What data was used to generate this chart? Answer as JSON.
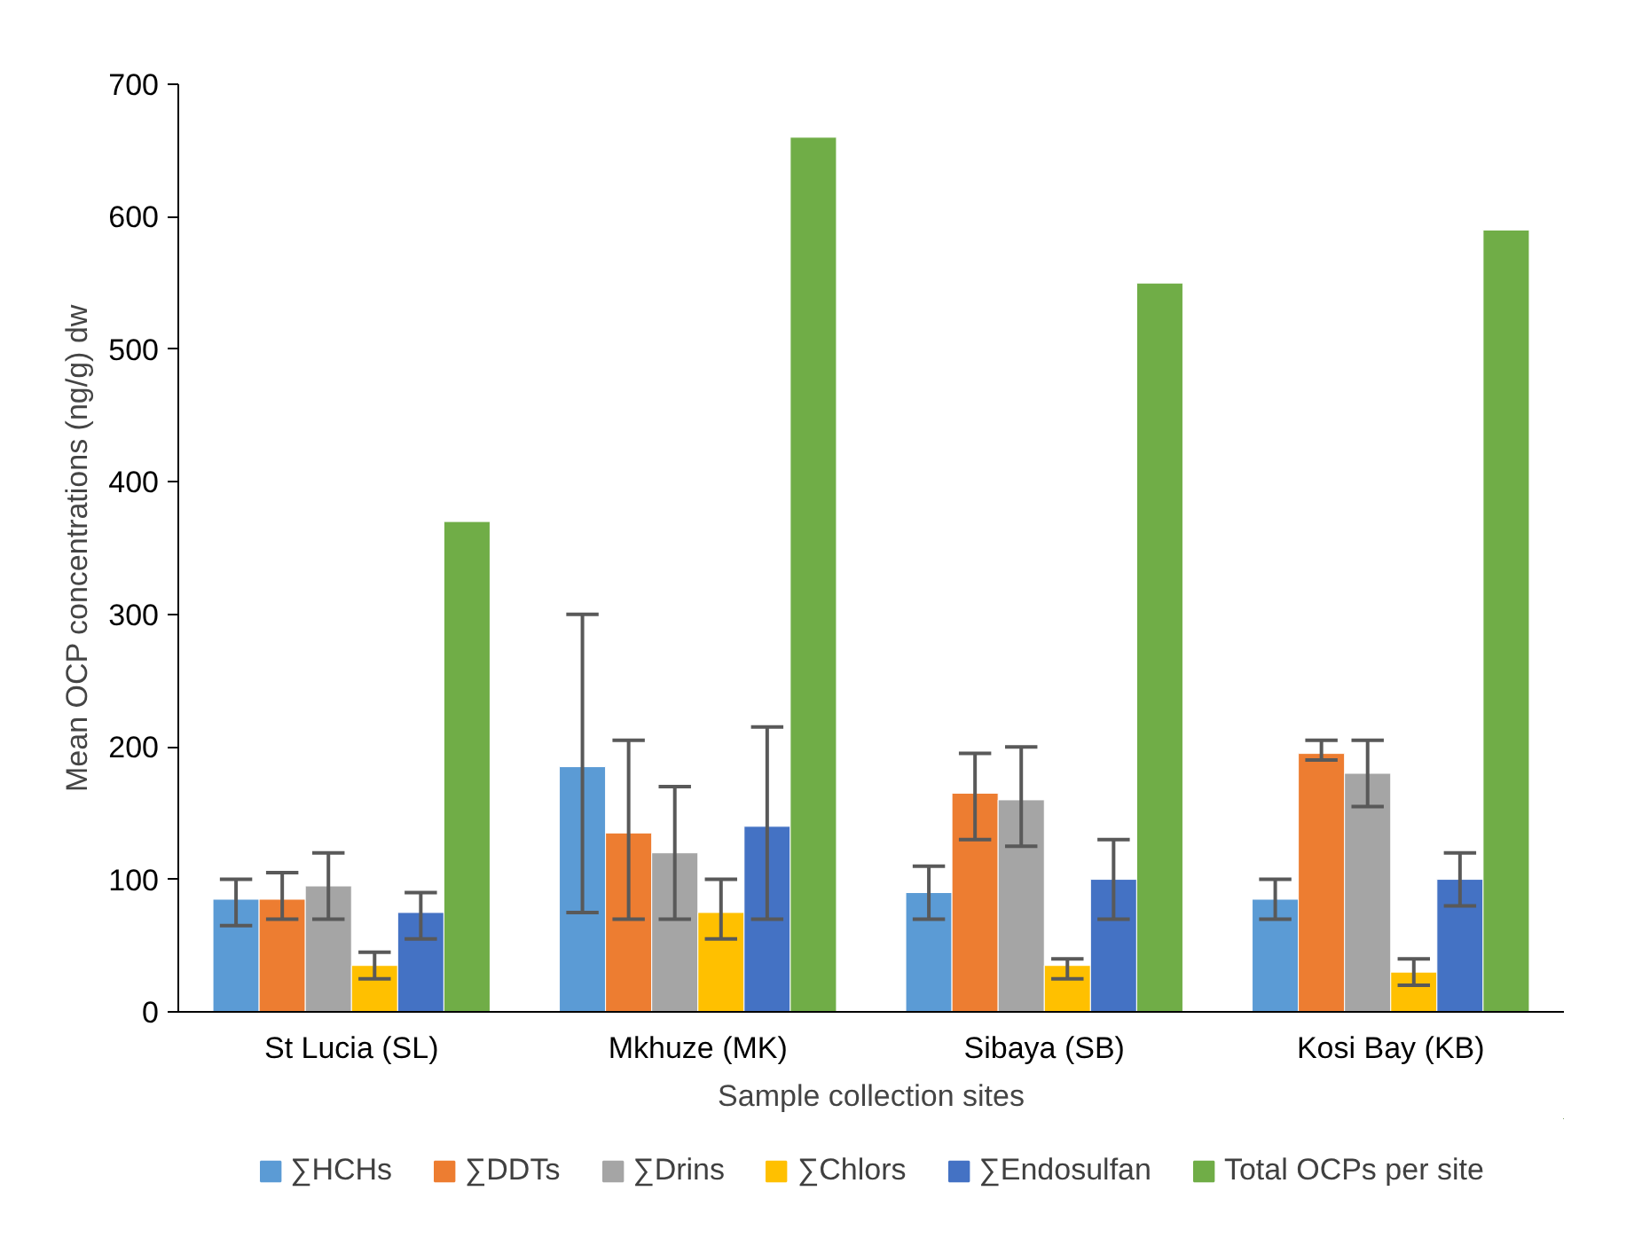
{
  "chart_data": {
    "type": "bar",
    "xlabel": "Sample collection sites",
    "ylabel": "Mean OCP concentrations (ng/g) dw",
    "categories": [
      "St Lucia (SL)",
      "Mkhuze (MK)",
      "Sibaya (SB)",
      "Kosi Bay (KB)"
    ],
    "ylim": [
      0,
      700
    ],
    "yticks": [
      0,
      100,
      200,
      300,
      400,
      500,
      600,
      700
    ],
    "grid": false,
    "legend": "bottom",
    "series": [
      {
        "name": "∑HCHs",
        "color": "#5b9bd5",
        "values": [
          85,
          185,
          90,
          85
        ],
        "errors": [
          [
            65,
            100
          ],
          [
            75,
            300
          ],
          [
            70,
            110
          ],
          [
            70,
            100
          ]
        ]
      },
      {
        "name": "∑DDTs",
        "color": "#ed7d31",
        "values": [
          85,
          135,
          165,
          195
        ],
        "errors": [
          [
            70,
            105
          ],
          [
            70,
            205
          ],
          [
            130,
            195
          ],
          [
            190,
            205
          ]
        ]
      },
      {
        "name": "∑Drins",
        "color": "#a5a5a5",
        "values": [
          95,
          120,
          160,
          180
        ],
        "errors": [
          [
            70,
            120
          ],
          [
            70,
            170
          ],
          [
            125,
            200
          ],
          [
            155,
            205
          ]
        ]
      },
      {
        "name": "∑Chlors",
        "color": "#ffc000",
        "values": [
          35,
          75,
          35,
          30
        ],
        "errors": [
          [
            25,
            45
          ],
          [
            55,
            100
          ],
          [
            25,
            40
          ],
          [
            20,
            40
          ]
        ]
      },
      {
        "name": "∑Endosulfan",
        "color": "#4472c4",
        "values": [
          75,
          140,
          100,
          100
        ],
        "errors": [
          [
            55,
            90
          ],
          [
            70,
            215
          ],
          [
            70,
            130
          ],
          [
            80,
            120
          ]
        ]
      },
      {
        "name": "Total OCPs per site",
        "color": "#70ad47",
        "values": [
          370,
          660,
          550,
          590
        ]
      }
    ]
  }
}
